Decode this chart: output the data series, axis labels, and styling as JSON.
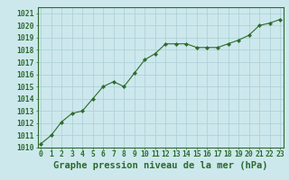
{
  "x": [
    0,
    1,
    2,
    3,
    4,
    5,
    6,
    7,
    8,
    9,
    10,
    11,
    12,
    13,
    14,
    15,
    16,
    17,
    18,
    19,
    20,
    21,
    22,
    23
  ],
  "y": [
    1010.3,
    1011.0,
    1012.1,
    1012.8,
    1013.0,
    1014.0,
    1015.0,
    1015.4,
    1015.0,
    1016.1,
    1017.2,
    1017.7,
    1018.5,
    1018.5,
    1018.5,
    1018.2,
    1018.2,
    1018.2,
    1018.5,
    1018.8,
    1019.2,
    1020.0,
    1020.2,
    1020.5
  ],
  "line_color": "#2d6a2d",
  "marker": "D",
  "marker_size": 2.2,
  "bg_color": "#cce8ec",
  "grid_color": "#aacdd4",
  "xlabel": "Graphe pression niveau de la mer (hPa)",
  "xlabel_fontsize": 7.5,
  "xlabel_color": "#2d6a2d",
  "xlabel_bold": true,
  "tick_color": "#2d6a2d",
  "tick_fontsize": 5.8,
  "ylim": [
    1010,
    1021.5
  ],
  "xlim": [
    -0.3,
    23.3
  ],
  "yticks": [
    1010,
    1011,
    1012,
    1013,
    1014,
    1015,
    1016,
    1017,
    1018,
    1019,
    1020,
    1021
  ],
  "xticks": [
    0,
    1,
    2,
    3,
    4,
    5,
    6,
    7,
    8,
    9,
    10,
    11,
    12,
    13,
    14,
    15,
    16,
    17,
    18,
    19,
    20,
    21,
    22,
    23
  ]
}
